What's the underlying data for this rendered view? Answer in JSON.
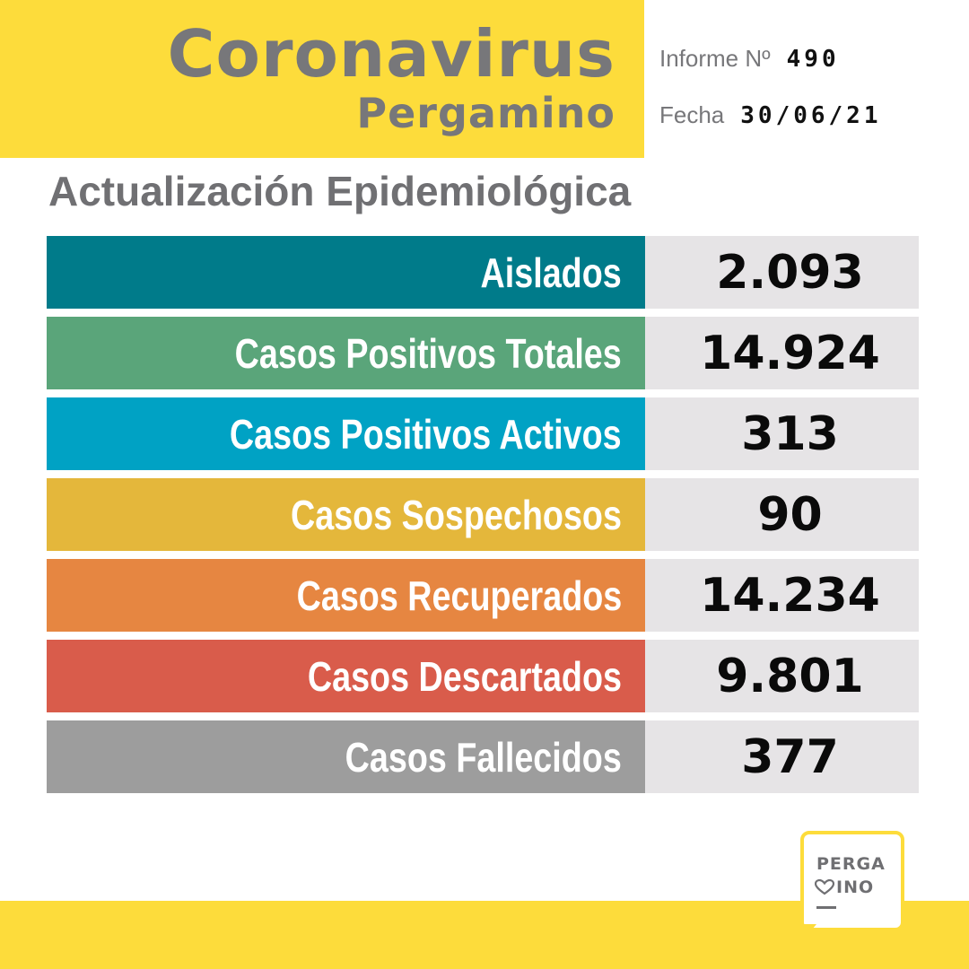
{
  "header": {
    "title": "Coronavirus",
    "subtitle": "Pergamino",
    "report_label": "Informe Nº",
    "report_number": "490",
    "date_label": "Fecha",
    "date_value": "30/06/21"
  },
  "section_title": "Actualización Epidemiológica",
  "stats": [
    {
      "label": "Aislados",
      "value": "2.093",
      "color": "#007b8a"
    },
    {
      "label": "Casos Positivos Totales",
      "value": "14.924",
      "color": "#5aa57a"
    },
    {
      "label": "Casos Positivos Activos",
      "value": "313",
      "color": "#00a2c4"
    },
    {
      "label": "Casos Sospechosos",
      "value": "90",
      "color": "#e4b73b"
    },
    {
      "label": "Casos Recuperados",
      "value": "14.234",
      "color": "#e68641"
    },
    {
      "label": "Casos Descartados",
      "value": "9.801",
      "color": "#d95c4b"
    },
    {
      "label": "Casos Fallecidos",
      "value": "377",
      "color": "#9d9d9d"
    }
  ],
  "colors": {
    "brand_yellow": "#fddc3b",
    "value_bg": "#e6e4e6",
    "title_gray": "#77777a"
  },
  "logo": {
    "line1": "PERGA",
    "line2": "INO",
    "icon": "heart-icon"
  }
}
